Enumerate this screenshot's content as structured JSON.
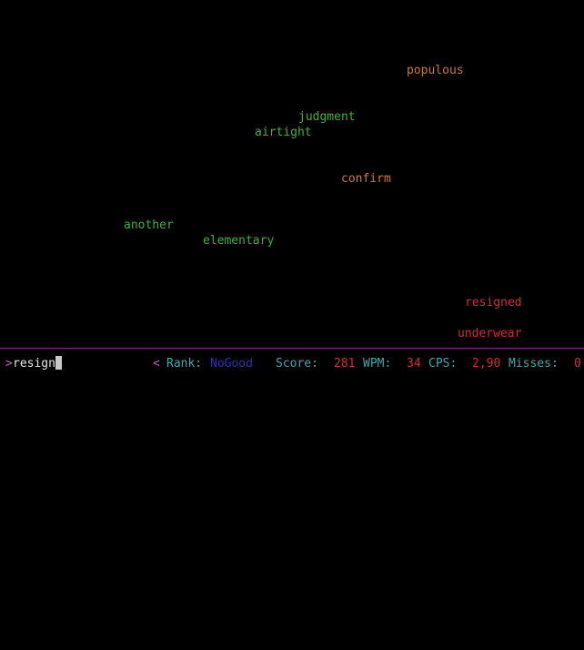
{
  "colors": {
    "background": "#000000",
    "divider": "#a020a0",
    "prompt": "#c060c0",
    "input_text": "#e8e8e8",
    "label": "#40a8b0",
    "rank_value": "#3030c0",
    "stat_value": "#d03030",
    "word_green": "#40b040",
    "word_orange": "#d07830",
    "word_red": "#d03030"
  },
  "words": [
    {
      "text": "populous",
      "color": "orange"
    },
    {
      "text": "judgment",
      "color": "green"
    },
    {
      "text": "airtight",
      "color": "green"
    },
    {
      "text": "confirm",
      "color": "orange"
    },
    {
      "text": "another",
      "color": "green"
    },
    {
      "text": "elementary",
      "color": "green"
    },
    {
      "text": "resigned",
      "color": "red"
    },
    {
      "text": "underwear",
      "color": "red"
    }
  ],
  "input": {
    "prompt": ">",
    "value": "resign"
  },
  "status": {
    "rank_arrow": "<",
    "rank_label": "Rank:",
    "rank_value": "NoGood",
    "score_label": "Score:",
    "score_value": "281",
    "wpm_label": "WPM:",
    "wpm_value": "34",
    "cps_label": "CPS:",
    "cps_value": "2,90",
    "misses_label": "Misses:",
    "misses_value": "0"
  }
}
